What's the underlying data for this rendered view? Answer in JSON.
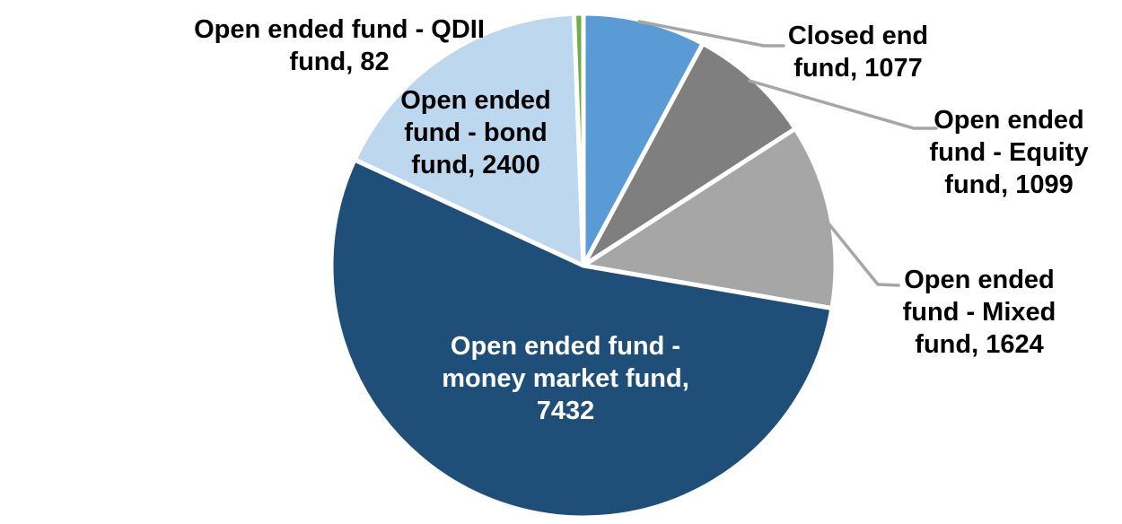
{
  "chart_data": {
    "type": "pie",
    "start_angle_deg": 0,
    "direction": "clockwise",
    "total": 13714,
    "slices": [
      {
        "key": "closed_end",
        "name": "Closed end fund",
        "value": 1077,
        "color": "#5B9BD5"
      },
      {
        "key": "equity",
        "name": "Open ended fund - Equity fund",
        "value": 1099,
        "color": "#7F7F7F"
      },
      {
        "key": "mixed",
        "name": "Open ended fund - Mixed fund",
        "value": 1624,
        "color": "#A6A6A6"
      },
      {
        "key": "money_market",
        "name": "Open ended fund - money market fund",
        "value": 7432,
        "color": "#1F4E79"
      },
      {
        "key": "bond",
        "name": "Open ended fund - bond fund",
        "value": 2400,
        "color": "#BDD7EE"
      },
      {
        "key": "qdii",
        "name": "Open ended fund - QDII fund",
        "value": 82,
        "color": "#70AD47"
      }
    ],
    "slice_border_color": "#FFFFFF",
    "leader_line_color": "#A6A6A6",
    "legend_position": "none",
    "title": ""
  },
  "labels": {
    "qdii": {
      "lines": [
        "Open ended fund - QDII",
        "fund, 82"
      ]
    },
    "bond": {
      "lines": [
        "Open ended",
        "fund - bond",
        "fund, 2400"
      ]
    },
    "closed": {
      "lines": [
        "Closed end",
        "fund, 1077"
      ]
    },
    "equity": {
      "lines": [
        "Open ended",
        "fund - Equity",
        "fund, 1099"
      ]
    },
    "mixed": {
      "lines": [
        "Open ended",
        "fund - Mixed",
        "fund, 1624"
      ]
    },
    "money": {
      "lines": [
        "Open ended fund -",
        "money market fund,",
        "7432"
      ]
    }
  }
}
